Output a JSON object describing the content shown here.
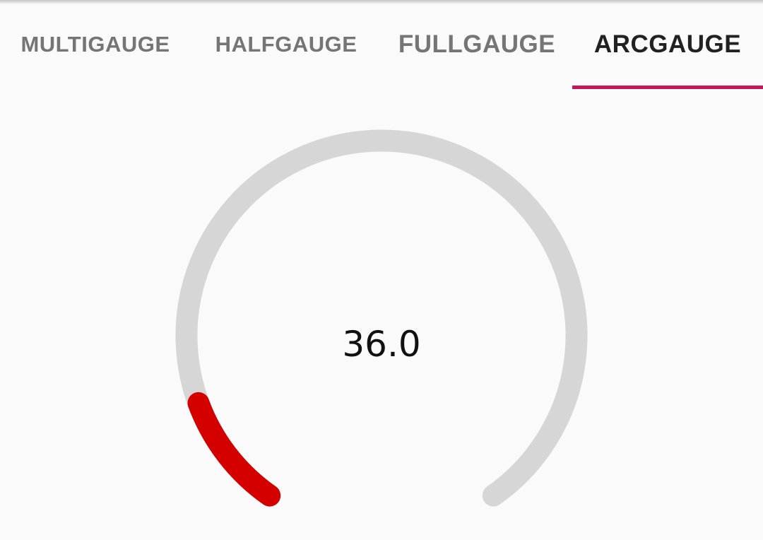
{
  "tabs": [
    {
      "label": "MULTIGAUGE",
      "active": false
    },
    {
      "label": "HALFGAUGE",
      "active": false
    },
    {
      "label": "FULLGAUGE",
      "active": false
    },
    {
      "label": "ARCGAUGE",
      "active": true
    }
  ],
  "gauge": {
    "value": 36.0,
    "display_value": "36.0",
    "fill_fraction": 0.12,
    "track_color": "#d6d6d6",
    "fill_color": "#d40000"
  },
  "colors": {
    "background": "#fafafa",
    "tab_indicator": "#c2185b",
    "tab_active_text": "#212121",
    "tab_inactive_text": "#757575"
  }
}
